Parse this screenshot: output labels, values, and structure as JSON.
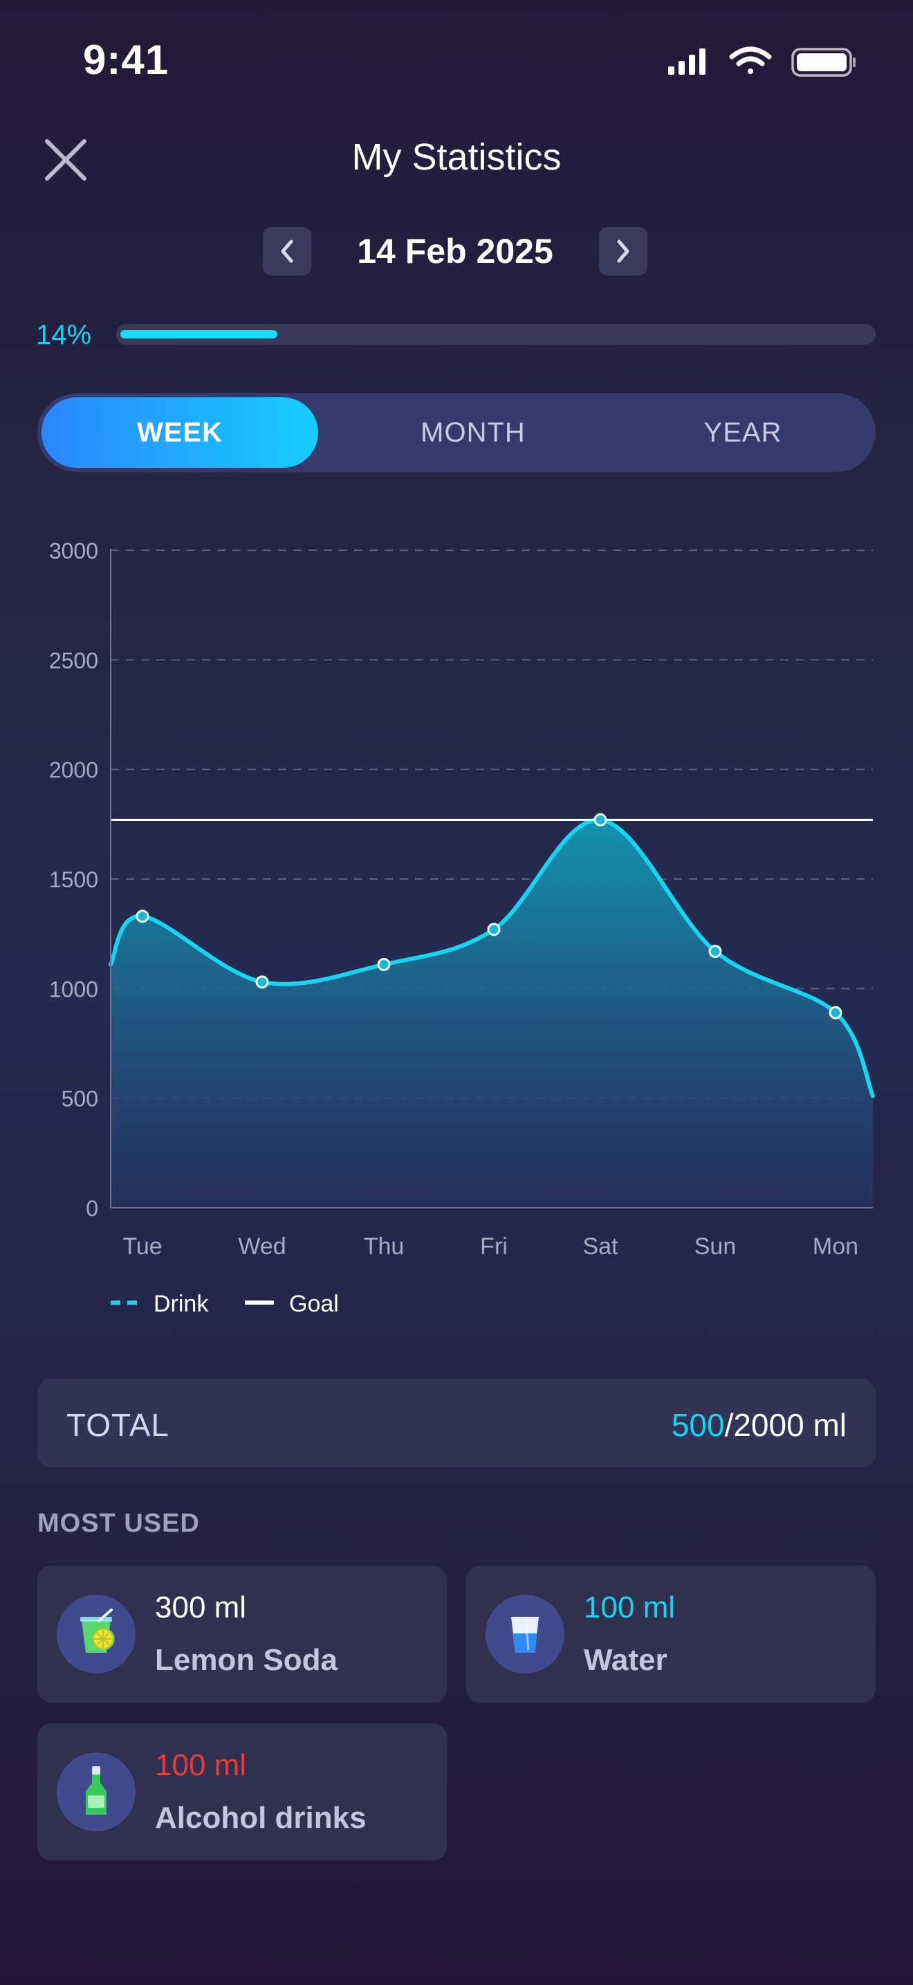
{
  "status_bar": {
    "time": "9:41"
  },
  "header": {
    "title": "My Statistics"
  },
  "date_nav": {
    "date": "14 Feb 2025"
  },
  "progress": {
    "label": "14%",
    "value": 0.14
  },
  "period_tabs": [
    {
      "label": "WEEK",
      "selected": true
    },
    {
      "label": "MONTH",
      "selected": false
    },
    {
      "label": "YEAR",
      "selected": false
    }
  ],
  "chart_data": {
    "type": "area",
    "categories": [
      "Tue",
      "Wed",
      "Thu",
      "Fri",
      "Sat",
      "Sun",
      "Mon"
    ],
    "series": [
      {
        "name": "Drink",
        "values": [
          1330,
          1030,
          1110,
          1270,
          1770,
          1170,
          890
        ],
        "color": "#17d4ef"
      }
    ],
    "goal": {
      "name": "Goal",
      "value": 1770,
      "color": "#ffffff"
    },
    "y_ticks": [
      "0",
      "500",
      "1000",
      "1500",
      "2000",
      "2500",
      "3000"
    ],
    "ylim": [
      0,
      3000
    ],
    "grid": true,
    "legend": "bottom-left"
  },
  "total": {
    "label": "TOTAL",
    "current": "500",
    "goal": "/2000 ml"
  },
  "most_used": {
    "title": "MOST USED",
    "items": [
      {
        "amount": "300 ml",
        "name": "Lemon Soda",
        "icon": "lemon-soda-icon",
        "amount_color": "#ffffff"
      },
      {
        "amount": "100 ml",
        "name": "Water",
        "icon": "water-glass-icon",
        "amount_color": "#17d4ef"
      },
      {
        "amount": "100 ml",
        "name": "Alcohol drinks",
        "icon": "bottle-icon",
        "amount_color": "#e93a3a"
      }
    ]
  },
  "colors": {
    "accent": "#17d4ef",
    "alert": "#e93a3a"
  }
}
